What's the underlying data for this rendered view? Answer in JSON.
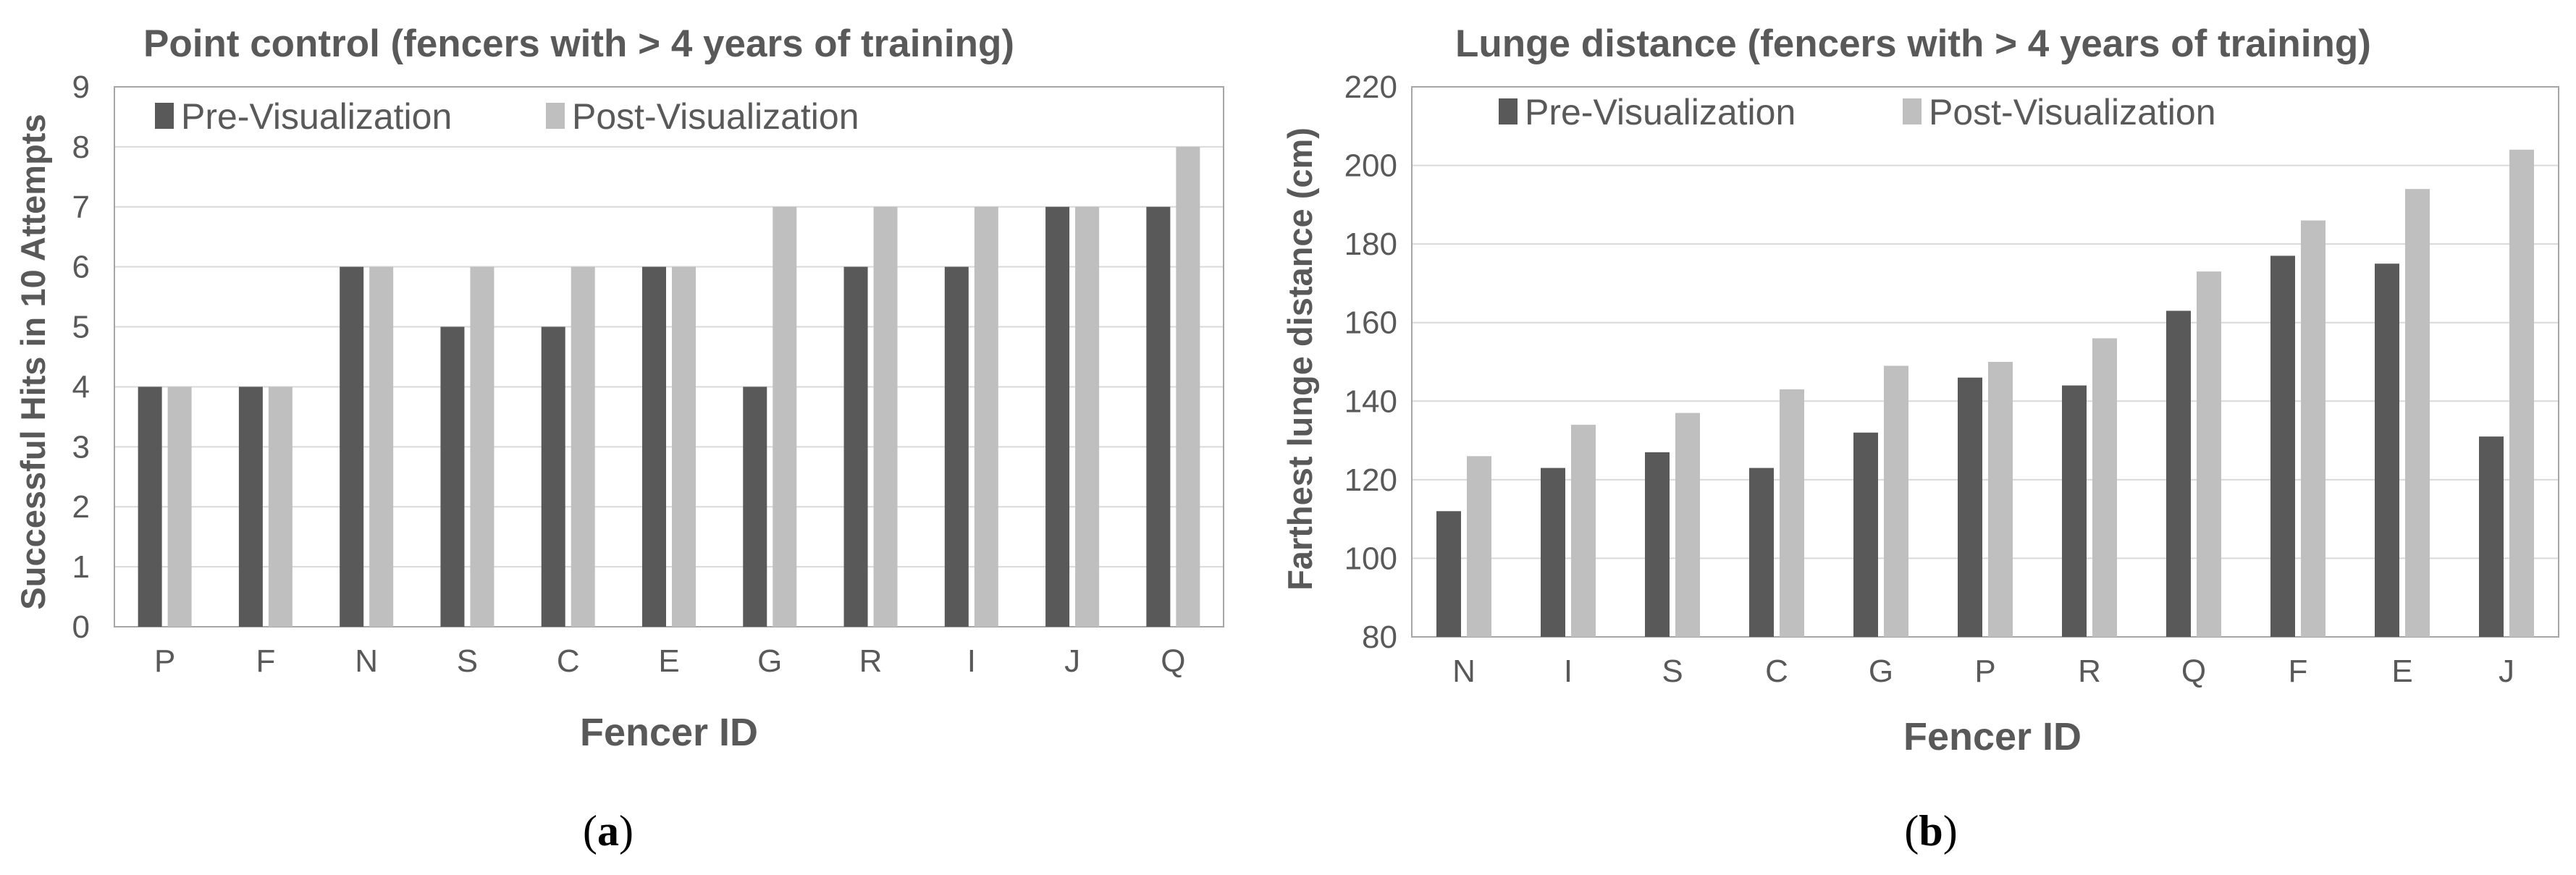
{
  "colors": {
    "pre": "#595959",
    "post": "#bfbfbf",
    "grid": "#d9d9d9",
    "frame": "#a6a6a6",
    "text": "#595959"
  },
  "panels": [
    {
      "label_open": "(",
      "label_letter": "a",
      "label_close": ")",
      "chart_data": {
        "type": "bar",
        "title": "Point control (fencers with > 4 years of training)",
        "xlabel": "Fencer ID",
        "ylabel": "Successful Hits in 10 Attempts",
        "ylim": [
          0,
          9
        ],
        "yticks": [
          "0",
          "1",
          "2",
          "3",
          "4",
          "5",
          "6",
          "7",
          "8",
          "9"
        ],
        "grid": true,
        "legend_position": "top-left",
        "categories": [
          "P",
          "F",
          "N",
          "S",
          "C",
          "E",
          "G",
          "R",
          "I",
          "J",
          "Q"
        ],
        "series": [
          {
            "name": "Pre-Visualization",
            "values": [
              4,
              4,
              6,
              5,
              5,
              6,
              4,
              6,
              6,
              7,
              7
            ]
          },
          {
            "name": "Post-Visualization",
            "values": [
              4,
              4,
              6,
              6,
              6,
              6,
              7,
              7,
              7,
              7,
              8
            ]
          }
        ]
      }
    },
    {
      "label_open": "(",
      "label_letter": "b",
      "label_close": ")",
      "chart_data": {
        "type": "bar",
        "title": "Lunge distance (fencers with > 4 years of training)",
        "xlabel": "Fencer ID",
        "ylabel": "Farthest lunge distance (cm)",
        "ylim": [
          80,
          220
        ],
        "yticks": [
          "80",
          "100",
          "120",
          "140",
          "160",
          "180",
          "200",
          "220"
        ],
        "grid": true,
        "legend_position": "top-left",
        "categories": [
          "N",
          "I",
          "S",
          "C",
          "G",
          "P",
          "R",
          "Q",
          "F",
          "E",
          "J"
        ],
        "series": [
          {
            "name": "Pre-Visualization",
            "values": [
              112,
              123,
              127,
              123,
              132,
              146,
              144,
              163,
              177,
              175,
              131
            ]
          },
          {
            "name": "Post-Visualization",
            "values": [
              126,
              134,
              137,
              143,
              149,
              150,
              156,
              173,
              186,
              194,
              204
            ]
          }
        ]
      }
    }
  ]
}
